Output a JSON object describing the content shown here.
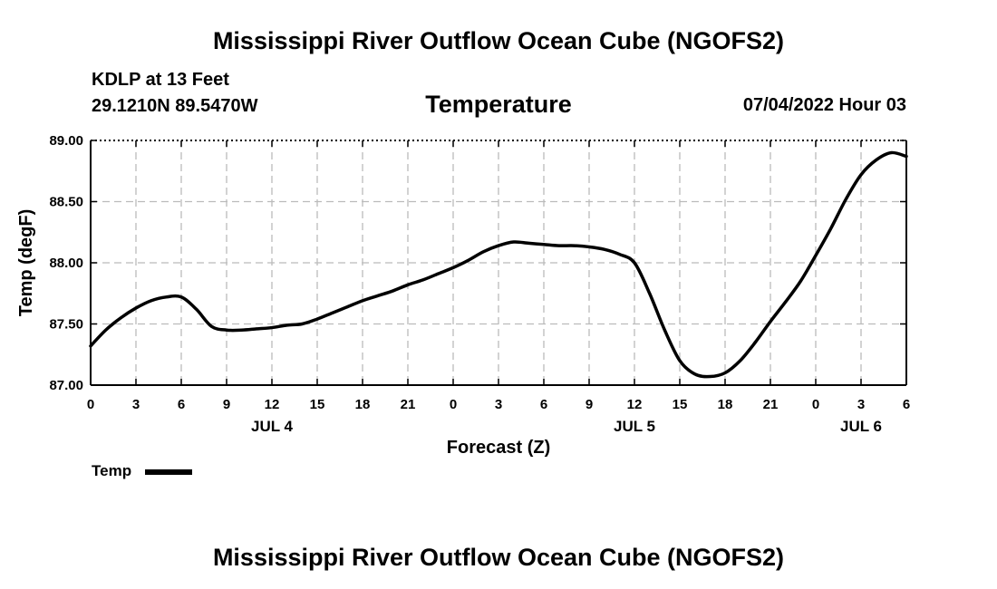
{
  "header": {
    "title_top": "Mississippi River Outflow Ocean Cube (NGOFS2)",
    "station": "KDLP at 13 Feet",
    "coords": "29.1210N  89.5470W",
    "datetime": "07/04/2022 Hour 03",
    "title_bottom": "Mississippi River Outflow Ocean Cube (NGOFS2)"
  },
  "legend": {
    "label": "Temp"
  },
  "chart_data": {
    "type": "line",
    "title": "Temperature",
    "xlabel": "Forecast (Z)",
    "ylabel": "Temp (degF)",
    "ylim": [
      87.0,
      89.0
    ],
    "xlim": [
      0,
      54
    ],
    "yticks": [
      {
        "value": 87.0,
        "label": "87.00"
      },
      {
        "value": 87.5,
        "label": "87.50"
      },
      {
        "value": 88.0,
        "label": "88.00"
      },
      {
        "value": 88.5,
        "label": "88.50"
      },
      {
        "value": 89.0,
        "label": "89.00"
      }
    ],
    "xticks": [
      {
        "value": 0,
        "label": "0"
      },
      {
        "value": 3,
        "label": "3"
      },
      {
        "value": 6,
        "label": "6"
      },
      {
        "value": 9,
        "label": "9"
      },
      {
        "value": 12,
        "label": "12"
      },
      {
        "value": 15,
        "label": "15"
      },
      {
        "value": 18,
        "label": "18"
      },
      {
        "value": 21,
        "label": "21"
      },
      {
        "value": 24,
        "label": "0"
      },
      {
        "value": 27,
        "label": "3"
      },
      {
        "value": 30,
        "label": "6"
      },
      {
        "value": 33,
        "label": "9"
      },
      {
        "value": 36,
        "label": "12"
      },
      {
        "value": 39,
        "label": "15"
      },
      {
        "value": 42,
        "label": "18"
      },
      {
        "value": 45,
        "label": "21"
      },
      {
        "value": 48,
        "label": "0"
      },
      {
        "value": 51,
        "label": "3"
      },
      {
        "value": 54,
        "label": "6"
      }
    ],
    "date_labels": [
      {
        "value": 12,
        "label": "JUL 4"
      },
      {
        "value": 36,
        "label": "JUL 5"
      },
      {
        "value": 51,
        "label": "JUL 6"
      }
    ],
    "grid": true,
    "series": [
      {
        "name": "Temp",
        "color": "#000000",
        "x": [
          0,
          1,
          2,
          3,
          4,
          5,
          6,
          7,
          8,
          9,
          10,
          11,
          12,
          13,
          14,
          15,
          16,
          17,
          18,
          19,
          20,
          21,
          22,
          23,
          24,
          25,
          26,
          27,
          28,
          29,
          30,
          31,
          32,
          33,
          34,
          35,
          36,
          37,
          38,
          39,
          40,
          41,
          42,
          43,
          44,
          45,
          46,
          47,
          48,
          49,
          50,
          51,
          52,
          53,
          54
        ],
        "values": [
          87.32,
          87.45,
          87.55,
          87.63,
          87.69,
          87.72,
          87.72,
          87.62,
          87.48,
          87.45,
          87.45,
          87.46,
          87.47,
          87.49,
          87.5,
          87.54,
          87.59,
          87.64,
          87.69,
          87.73,
          87.77,
          87.82,
          87.86,
          87.91,
          87.96,
          88.02,
          88.09,
          88.14,
          88.17,
          88.16,
          88.15,
          88.14,
          88.14,
          88.13,
          88.11,
          88.07,
          88.0,
          87.75,
          87.45,
          87.2,
          87.09,
          87.07,
          87.1,
          87.2,
          87.35,
          87.52,
          87.68,
          87.85,
          88.06,
          88.28,
          88.52,
          88.72,
          88.84,
          88.9,
          88.87
        ]
      }
    ]
  }
}
